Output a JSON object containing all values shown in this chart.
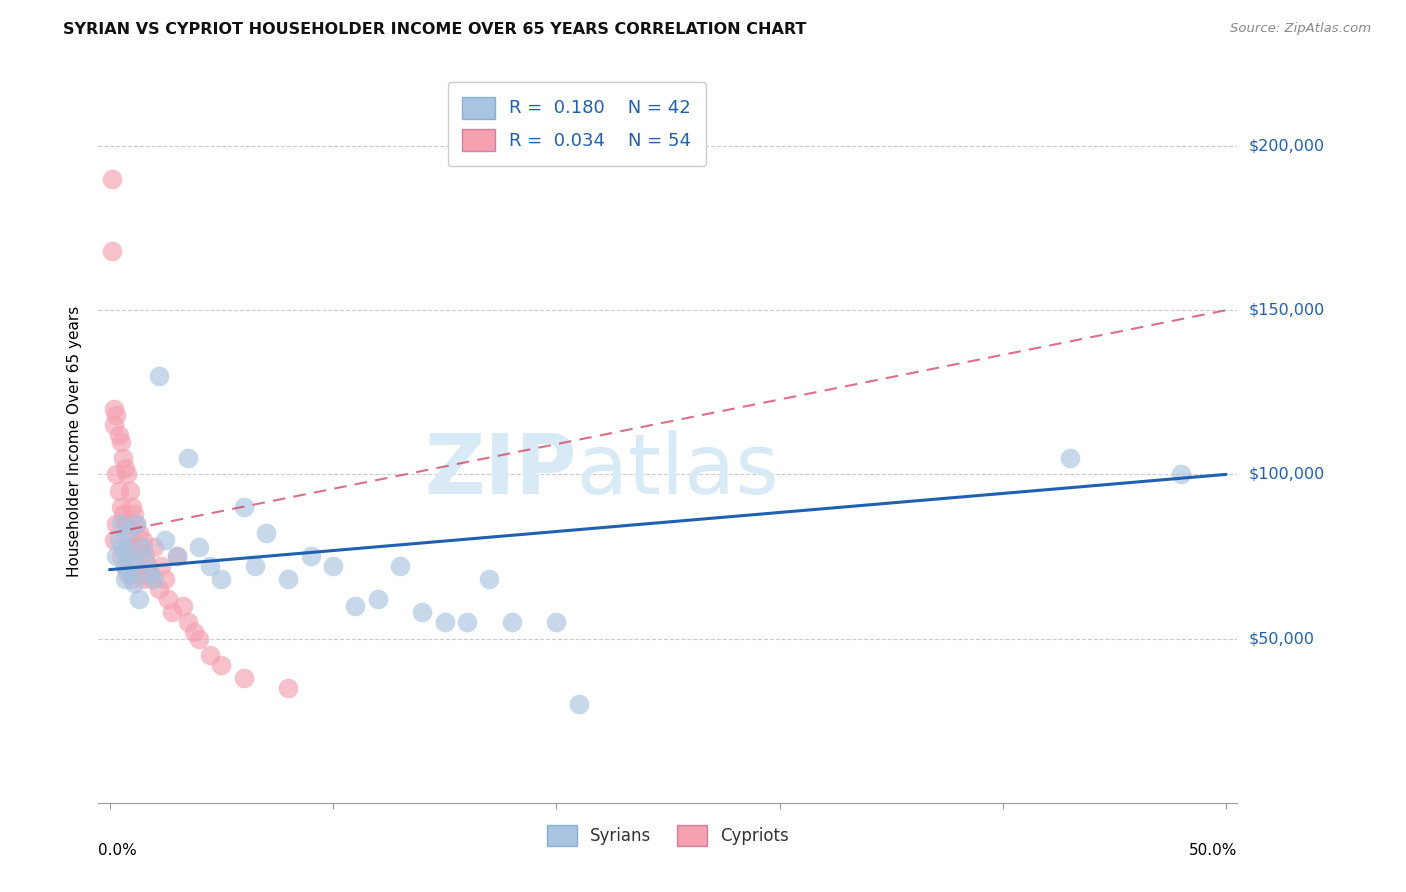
{
  "title": "SYRIAN VS CYPRIOT HOUSEHOLDER INCOME OVER 65 YEARS CORRELATION CHART",
  "source": "Source: ZipAtlas.com",
  "ylabel": "Householder Income Over 65 years",
  "ylim": [
    0,
    220000
  ],
  "xlim": [
    -0.005,
    0.505
  ],
  "yticks": [
    50000,
    100000,
    150000,
    200000
  ],
  "ytick_labels": [
    "$50,000",
    "$100,000",
    "$150,000",
    "$200,000"
  ],
  "syrians_R": 0.18,
  "syrians_N": 42,
  "cypriots_R": 0.034,
  "cypriots_N": 54,
  "syrians_color": "#a8c4e0",
  "cypriots_color": "#f4a0b0",
  "syrians_line_color": "#2060b0",
  "cypriots_line_color": "#d04060",
  "syrians_x": [
    0.003,
    0.004,
    0.005,
    0.006,
    0.007,
    0.007,
    0.008,
    0.008,
    0.009,
    0.01,
    0.011,
    0.012,
    0.013,
    0.015,
    0.016,
    0.018,
    0.02,
    0.022,
    0.025,
    0.03,
    0.035,
    0.04,
    0.045,
    0.05,
    0.06,
    0.065,
    0.07,
    0.08,
    0.09,
    0.1,
    0.11,
    0.12,
    0.13,
    0.14,
    0.15,
    0.16,
    0.17,
    0.18,
    0.2,
    0.21,
    0.43,
    0.48
  ],
  "syrians_y": [
    75000,
    80000,
    85000,
    78000,
    72000,
    68000,
    76000,
    82000,
    70000,
    73000,
    67000,
    85000,
    62000,
    78000,
    74000,
    70000,
    68000,
    130000,
    80000,
    75000,
    105000,
    78000,
    72000,
    68000,
    90000,
    72000,
    82000,
    68000,
    75000,
    72000,
    60000,
    62000,
    72000,
    58000,
    55000,
    55000,
    68000,
    55000,
    55000,
    30000,
    105000,
    100000
  ],
  "cypriots_x": [
    0.001,
    0.001,
    0.002,
    0.002,
    0.002,
    0.003,
    0.003,
    0.003,
    0.004,
    0.004,
    0.005,
    0.005,
    0.005,
    0.006,
    0.006,
    0.007,
    0.007,
    0.007,
    0.008,
    0.008,
    0.008,
    0.009,
    0.009,
    0.01,
    0.01,
    0.01,
    0.011,
    0.011,
    0.012,
    0.012,
    0.013,
    0.013,
    0.014,
    0.015,
    0.015,
    0.016,
    0.017,
    0.018,
    0.019,
    0.02,
    0.022,
    0.023,
    0.025,
    0.026,
    0.028,
    0.03,
    0.033,
    0.035,
    0.038,
    0.04,
    0.045,
    0.05,
    0.06,
    0.08
  ],
  "cypriots_y": [
    190000,
    168000,
    120000,
    115000,
    80000,
    118000,
    100000,
    85000,
    112000,
    95000,
    110000,
    90000,
    75000,
    105000,
    88000,
    102000,
    85000,
    72000,
    100000,
    85000,
    70000,
    95000,
    80000,
    90000,
    78000,
    68000,
    88000,
    75000,
    85000,
    72000,
    82000,
    70000,
    78000,
    80000,
    68000,
    75000,
    72000,
    70000,
    68000,
    78000,
    65000,
    72000,
    68000,
    62000,
    58000,
    75000,
    60000,
    55000,
    52000,
    50000,
    45000,
    42000,
    38000,
    35000
  ],
  "syrians_line_x": [
    0.0,
    0.5
  ],
  "syrians_line_y": [
    71000,
    100000
  ],
  "cypriots_line_x": [
    0.0,
    0.5
  ],
  "cypriots_line_y": [
    82000,
    150000
  ]
}
